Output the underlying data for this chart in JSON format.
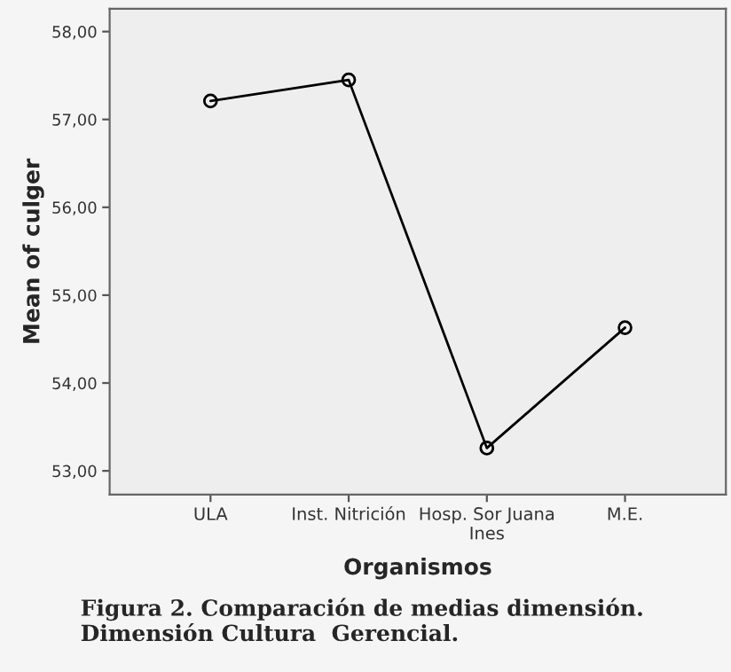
{
  "chart_data": {
    "type": "line",
    "xlabel": "Organismos",
    "ylabel": "Mean of culger",
    "categories": [
      "ULA",
      "Inst. Nitrición",
      "Hosp. Sor Juana\nInes",
      "M.E."
    ],
    "series": [
      {
        "color": "#000000",
        "values": [
          57.21,
          57.45,
          53.26,
          54.63
        ]
      }
    ],
    "ylim": [
      52.73,
      58.26
    ],
    "yticks": [
      {
        "value": 53,
        "label": "53,00"
      },
      {
        "value": 54,
        "label": "54,00"
      },
      {
        "value": 55,
        "label": "55,00"
      },
      {
        "value": 56,
        "label": "56,00"
      },
      {
        "value": 57,
        "label": "57,00"
      },
      {
        "value": 58,
        "label": "58,00"
      }
    ],
    "marker": "circle",
    "line_style": "solid",
    "grid": false,
    "legend": false,
    "annotations": [
      "Figura 2. Comparación de medias dimensión. Dimensión Cultura  Gerencial."
    ]
  }
}
